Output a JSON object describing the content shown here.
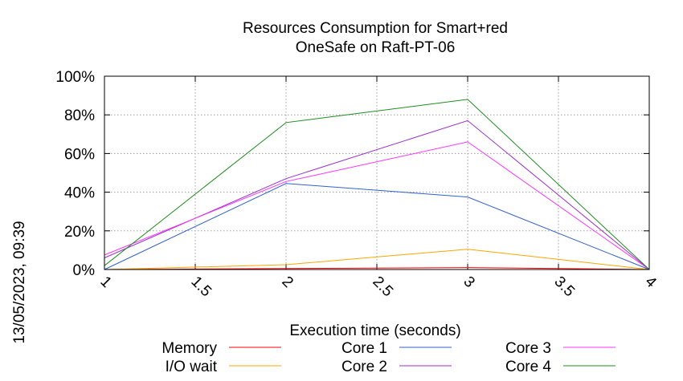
{
  "chart_data": {
    "type": "line",
    "title_lines": [
      "Resources Consumption for Smart+red",
      "OneSafe on Raft-PT-06"
    ],
    "xlabel": "Execution time (seconds)",
    "ylabel": "",
    "xlim": [
      1,
      4
    ],
    "ylim": [
      0,
      100
    ],
    "x_ticks": [
      "1",
      "1.5",
      "2",
      "2.5",
      "3",
      "3.5",
      "4"
    ],
    "x_tick_values": [
      1,
      1.5,
      2,
      2.5,
      3,
      3.5,
      4
    ],
    "y_ticks": [
      "0%",
      "20%",
      "40%",
      "60%",
      "80%",
      "100%"
    ],
    "y_tick_values": [
      0,
      20,
      40,
      60,
      80,
      100
    ],
    "grid": true,
    "legend_position": "bottom",
    "side_stamp": "13/05/2023, 09:39",
    "series": [
      {
        "name": "Memory",
        "color": "#ff0000",
        "x": [
          1,
          2,
          3,
          4
        ],
        "values": [
          0,
          0.5,
          1,
          0
        ]
      },
      {
        "name": "I/O wait",
        "color": "#ffa500",
        "x": [
          1,
          2,
          3,
          4
        ],
        "values": [
          0,
          2.5,
          10.5,
          0
        ]
      },
      {
        "name": "Core 1",
        "color": "#3060d0",
        "x": [
          1,
          2,
          3,
          4
        ],
        "values": [
          0,
          44.5,
          37.5,
          0
        ]
      },
      {
        "name": "Core 2",
        "color": "#9932cc",
        "x": [
          1,
          2,
          3,
          4
        ],
        "values": [
          6,
          47,
          77,
          0
        ]
      },
      {
        "name": "Core 3",
        "color": "#ff33ff",
        "x": [
          1,
          2,
          3,
          4
        ],
        "values": [
          7.5,
          45.5,
          66,
          0
        ]
      },
      {
        "name": "Core 4",
        "color": "#228b22",
        "x": [
          1,
          2,
          3,
          4
        ],
        "values": [
          2,
          76,
          88,
          0
        ]
      }
    ]
  }
}
